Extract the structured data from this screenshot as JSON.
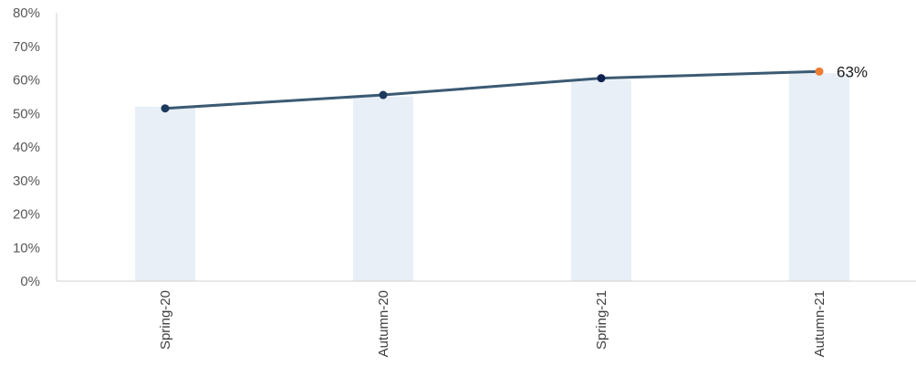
{
  "chart_data": {
    "type": "bar",
    "categories": [
      "Spring-20",
      "Autumn-20",
      "Spring-21",
      "Autumn-21"
    ],
    "series": [
      {
        "kind": "bar",
        "values": [
          52,
          55,
          60,
          62
        ]
      },
      {
        "kind": "line",
        "values": [
          51.5,
          55.5,
          60.5,
          62.5
        ]
      }
    ],
    "ylim": [
      0,
      80
    ],
    "ytick_values": [
      0,
      10,
      20,
      30,
      40,
      50,
      60,
      70,
      80
    ],
    "ytick_labels": [
      "0%",
      "10%",
      "20%",
      "30%",
      "40%",
      "50%",
      "60%",
      "70%",
      "80%"
    ],
    "data_labels": [
      {
        "category": "Autumn-21",
        "text": "63%"
      }
    ],
    "grid": false,
    "colors": {
      "bar": "#e8eff7",
      "line": "#3b5a73",
      "marker": "#1d3a5e",
      "marker_dark": "#0f2150",
      "marker_highlight": "#ed7d31",
      "axis": "#d0d0d0"
    }
  }
}
